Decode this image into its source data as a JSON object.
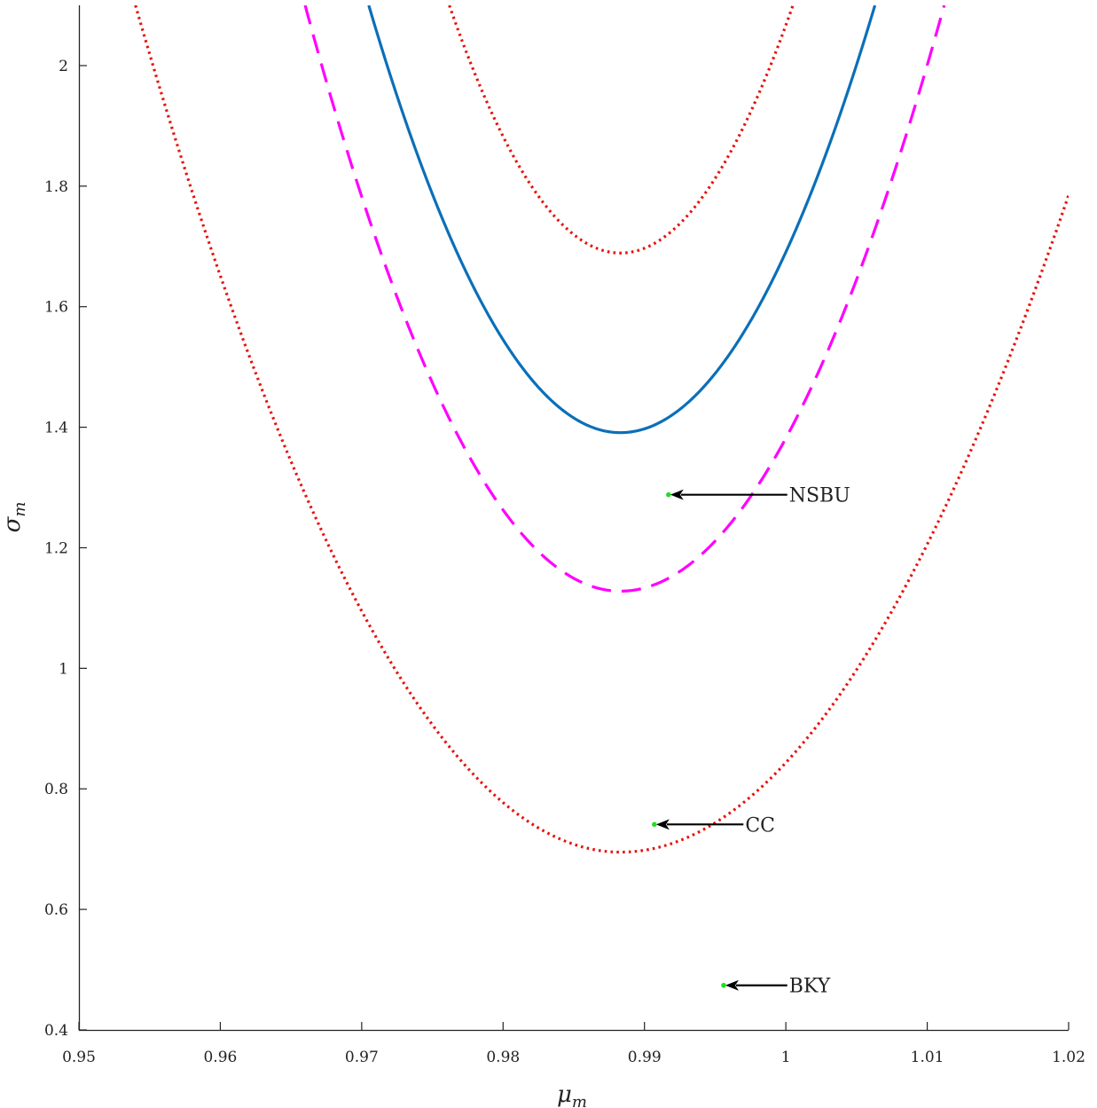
{
  "chart_data": {
    "type": "line",
    "title": "",
    "xlabel": {
      "symbol": "μ",
      "sub": "m"
    },
    "ylabel": {
      "symbol": "σ",
      "sub": "m"
    },
    "xlim": [
      0.95,
      1.02
    ],
    "ylim": [
      0.4,
      2.1
    ],
    "xticks": [
      0.95,
      0.96,
      0.97,
      0.98,
      0.99,
      1.0,
      1.01,
      1.02
    ],
    "xtick_labels": [
      "0.95",
      "0.96",
      "0.97",
      "0.98",
      "0.99",
      "1",
      "1.01",
      "1.02"
    ],
    "yticks": [
      0.4,
      0.6,
      0.8,
      1.0,
      1.2,
      1.4,
      1.6,
      1.8,
      2.0
    ],
    "ytick_labels": [
      "0.4",
      "0.6",
      "0.8",
      "1",
      "1.2",
      "1.4",
      "1.6",
      "1.8",
      "2"
    ],
    "grid": false,
    "series": [
      {
        "style": "dotted",
        "color": "#e8120c",
        "vertex": [
          0.9883,
          0.695
        ],
        "points": [
          [
            0.954,
            2.1
          ],
          [
            1.02,
            1.785
          ]
        ]
      },
      {
        "style": "dashed",
        "color": "#ff00ff",
        "vertex": [
          0.9883,
          1.128
        ],
        "points": [
          [
            0.966,
            2.1
          ],
          [
            1.0112,
            2.1
          ]
        ]
      },
      {
        "style": "solid",
        "color": "#0b6fb8",
        "vertex": [
          0.9883,
          1.391
        ],
        "points": [
          [
            0.9705,
            2.1
          ],
          [
            1.0063,
            2.1
          ]
        ]
      },
      {
        "style": "dotted",
        "color": "#e8120c",
        "vertex": [
          0.9883,
          1.689
        ],
        "points": [
          [
            0.9762,
            2.1
          ],
          [
            1.0005,
            2.1
          ]
        ]
      }
    ],
    "points": [
      {
        "label": "NSBU",
        "x": 0.9917,
        "y": 1.288,
        "label_x": 1.0001
      },
      {
        "label": "CC",
        "x": 0.9907,
        "y": 0.741,
        "label_x": 0.997
      },
      {
        "label": "BKY",
        "x": 0.9956,
        "y": 0.474,
        "label_x": 1.0001
      }
    ],
    "point_color": "#22dd22"
  }
}
